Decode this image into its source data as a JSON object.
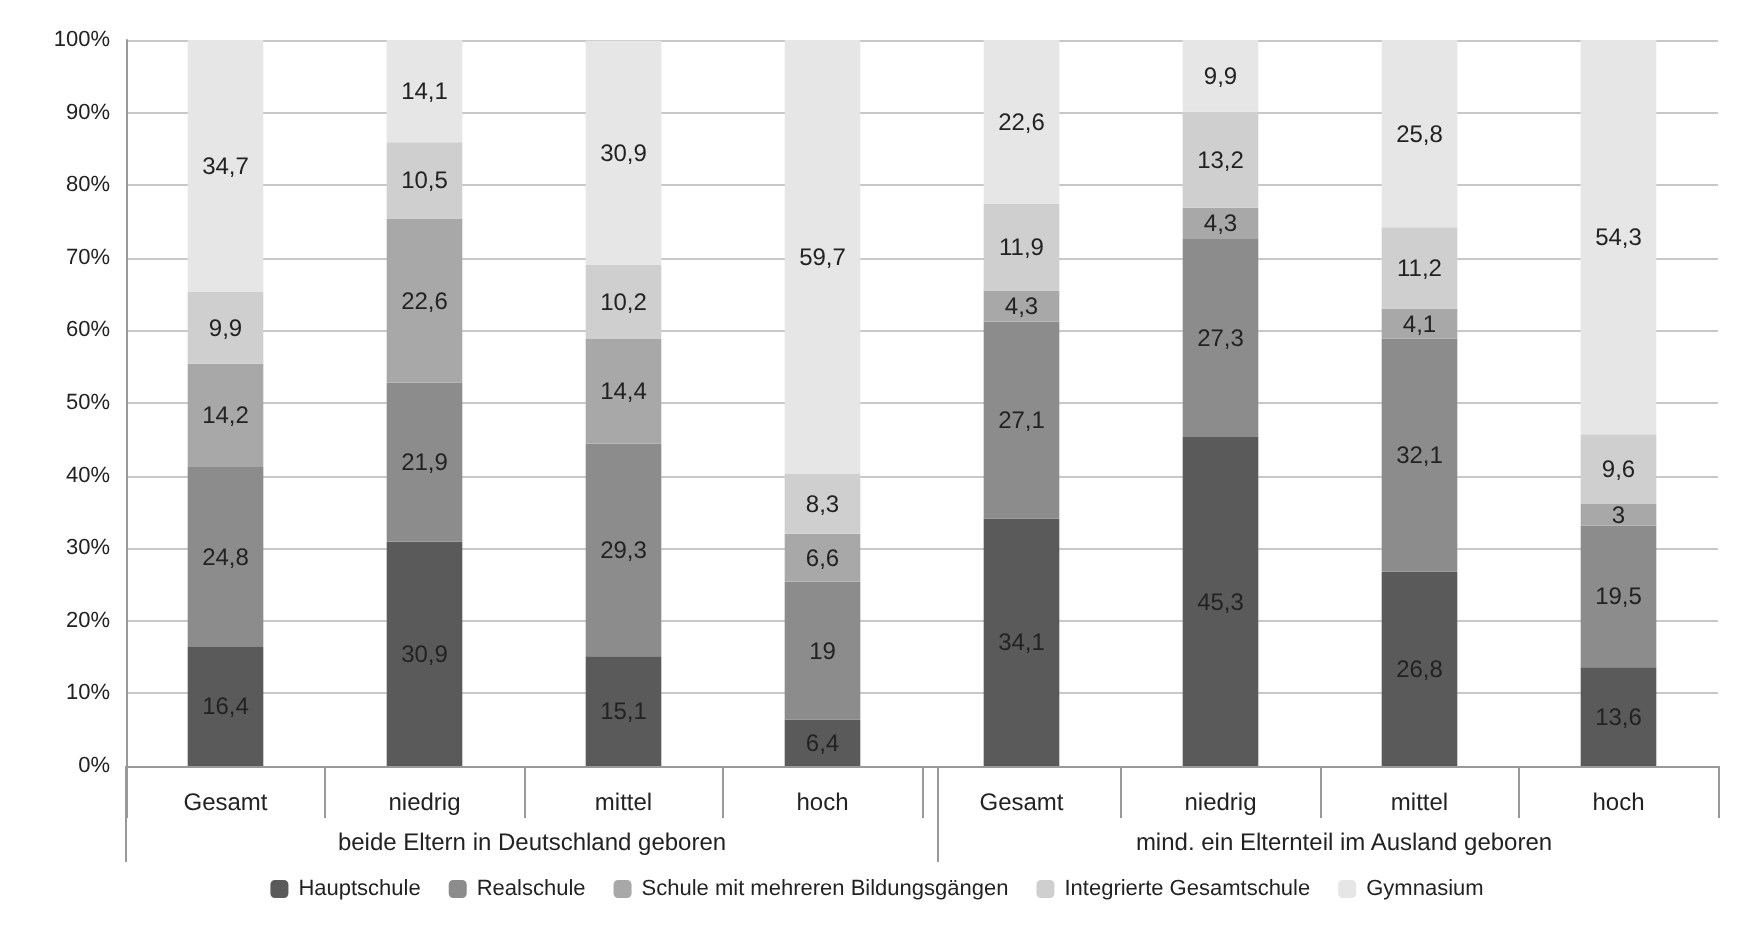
{
  "chart_data": {
    "type": "bar",
    "stacked": true,
    "categories": [
      "Gesamt",
      "niedrig",
      "mittel",
      "hoch",
      "Gesamt",
      "niedrig",
      "mittel",
      "hoch"
    ],
    "series": [
      {
        "name": "Hauptschule",
        "color": "#5a5a5a",
        "values": [
          16.4,
          30.9,
          15.1,
          6.4,
          34.1,
          45.3,
          26.8,
          13.6
        ],
        "value_labels": [
          "16,4",
          "30,9",
          "15,1",
          "6,4",
          "34,1",
          "45,3",
          "26,8",
          "13,6"
        ]
      },
      {
        "name": "Realschule",
        "color": "#8c8c8c",
        "values": [
          24.8,
          21.9,
          29.3,
          19,
          27.1,
          27.3,
          32.1,
          19.5
        ],
        "value_labels": [
          "24,8",
          "21,9",
          "29,3",
          "19",
          "27,1",
          "27,3",
          "32,1",
          "19,5"
        ]
      },
      {
        "name": "Schule mit mehreren Bildungsgängen",
        "color": "#a8a8a8",
        "values": [
          14.2,
          22.6,
          14.4,
          6.6,
          4.3,
          4.3,
          4.1,
          3
        ],
        "value_labels": [
          "14,2",
          "22,6",
          "14,4",
          "6,6",
          "4,3",
          "4,3",
          "4,1",
          "3"
        ]
      },
      {
        "name": "Integrierte Gesamtschule",
        "color": "#cfcfcf",
        "values": [
          9.9,
          10.5,
          10.2,
          8.3,
          11.9,
          13.2,
          11.2,
          9.6
        ],
        "value_labels": [
          "9,9",
          "10,5",
          "10,2",
          "8,3",
          "11,9",
          "13,2",
          "11,2",
          "9,6"
        ]
      },
      {
        "name": "Gymnasium",
        "color": "#e6e6e6",
        "values": [
          34.7,
          14.1,
          30.9,
          59.7,
          22.6,
          9.9,
          25.8,
          54.3
        ],
        "value_labels": [
          "34,7",
          "14,1",
          "30,9",
          "59,7",
          "22,6",
          "9,9",
          "25,8",
          "54,3"
        ]
      }
    ],
    "ylim": [
      0,
      100
    ],
    "yticks": [
      {
        "value": 0,
        "label": "0%"
      },
      {
        "value": 10,
        "label": "10%"
      },
      {
        "value": 20,
        "label": "20%"
      },
      {
        "value": 30,
        "label": "30%"
      },
      {
        "value": 40,
        "label": "40%"
      },
      {
        "value": 50,
        "label": "50%"
      },
      {
        "value": 60,
        "label": "60%"
      },
      {
        "value": 70,
        "label": "70%"
      },
      {
        "value": 80,
        "label": "80%"
      },
      {
        "value": 90,
        "label": "90%"
      },
      {
        "value": 100,
        "label": "100%"
      }
    ],
    "grid": "y",
    "legend": "bottom",
    "annotations": [
      "beide Eltern in Deutschland geboren",
      "mind. ein Elternteil im Ausland geboren"
    ]
  }
}
